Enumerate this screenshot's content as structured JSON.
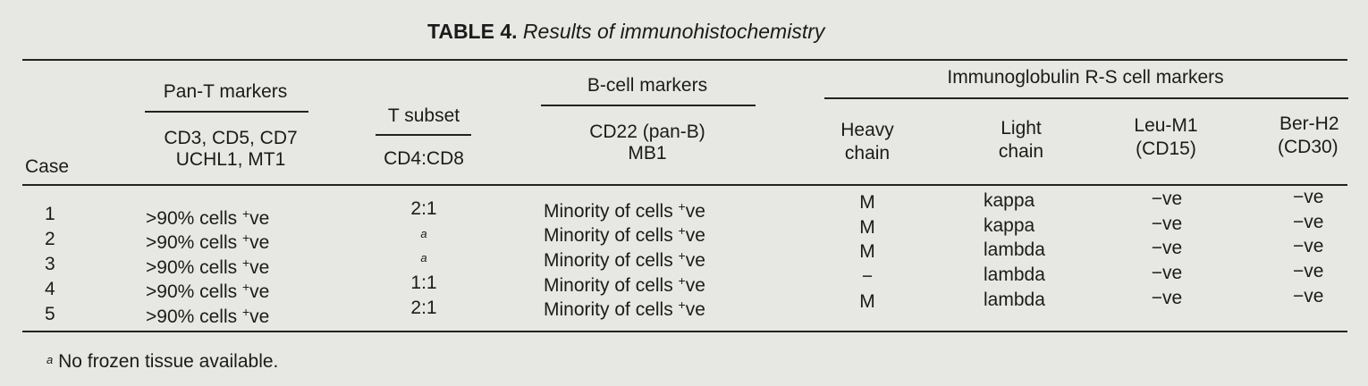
{
  "title": {
    "label": "TABLE 4.",
    "text": "Results of immunohistochemistry"
  },
  "group_headers": {
    "pan_t": "Pan-T markers",
    "t_subset": "T subset",
    "b_cell": "B-cell markers",
    "ig_rs": "Immunoglobulin R-S cell markers"
  },
  "sub_headers": {
    "case": "Case",
    "pan_t_line1": "CD3, CD5, CD7",
    "pan_t_line2": "UCHL1, MT1",
    "t_subset": "CD4:CD8",
    "b_cell_line1": "CD22 (pan-B)",
    "b_cell_line2": "MB1",
    "heavy_line1": "Heavy",
    "heavy_line2": "chain",
    "light_line1": "Light",
    "light_line2": "chain",
    "leu_line1": "Leu-M1",
    "leu_line2": "(CD15)",
    "ber_line1": "Ber-H2",
    "ber_line2": "(CD30)"
  },
  "rows": [
    {
      "case": "1",
      "pan_t": ">90% cells +ve",
      "t_subset": "2:1",
      "b_cell": "Minority of cells +ve",
      "heavy": "M",
      "light": "kappa",
      "leu": "−ve",
      "ber": "−ve"
    },
    {
      "case": "2",
      "pan_t": ">90% cells +ve",
      "t_subset": "a",
      "b_cell": "Minority of cells +ve",
      "heavy": "M",
      "light": "kappa",
      "leu": "−ve",
      "ber": "−ve"
    },
    {
      "case": "3",
      "pan_t": ">90% cells +ve",
      "t_subset": "a",
      "b_cell": "Minority of cells +ve",
      "heavy": "M",
      "light": "lambda",
      "leu": "−ve",
      "ber": "−ve"
    },
    {
      "case": "4",
      "pan_t": ">90% cells +ve",
      "t_subset": "1:1",
      "b_cell": "Minority of cells +ve",
      "heavy": "−",
      "light": "lambda",
      "leu": "−ve",
      "ber": "−ve"
    },
    {
      "case": "5",
      "pan_t": ">90% cells +ve",
      "t_subset": "2:1",
      "b_cell": "Minority of cells +ve",
      "heavy": "M",
      "light": "lambda",
      "leu": "−ve",
      "ber": "−ve"
    }
  ],
  "footnote": {
    "mark": "a",
    "text": "No frozen tissue available."
  }
}
